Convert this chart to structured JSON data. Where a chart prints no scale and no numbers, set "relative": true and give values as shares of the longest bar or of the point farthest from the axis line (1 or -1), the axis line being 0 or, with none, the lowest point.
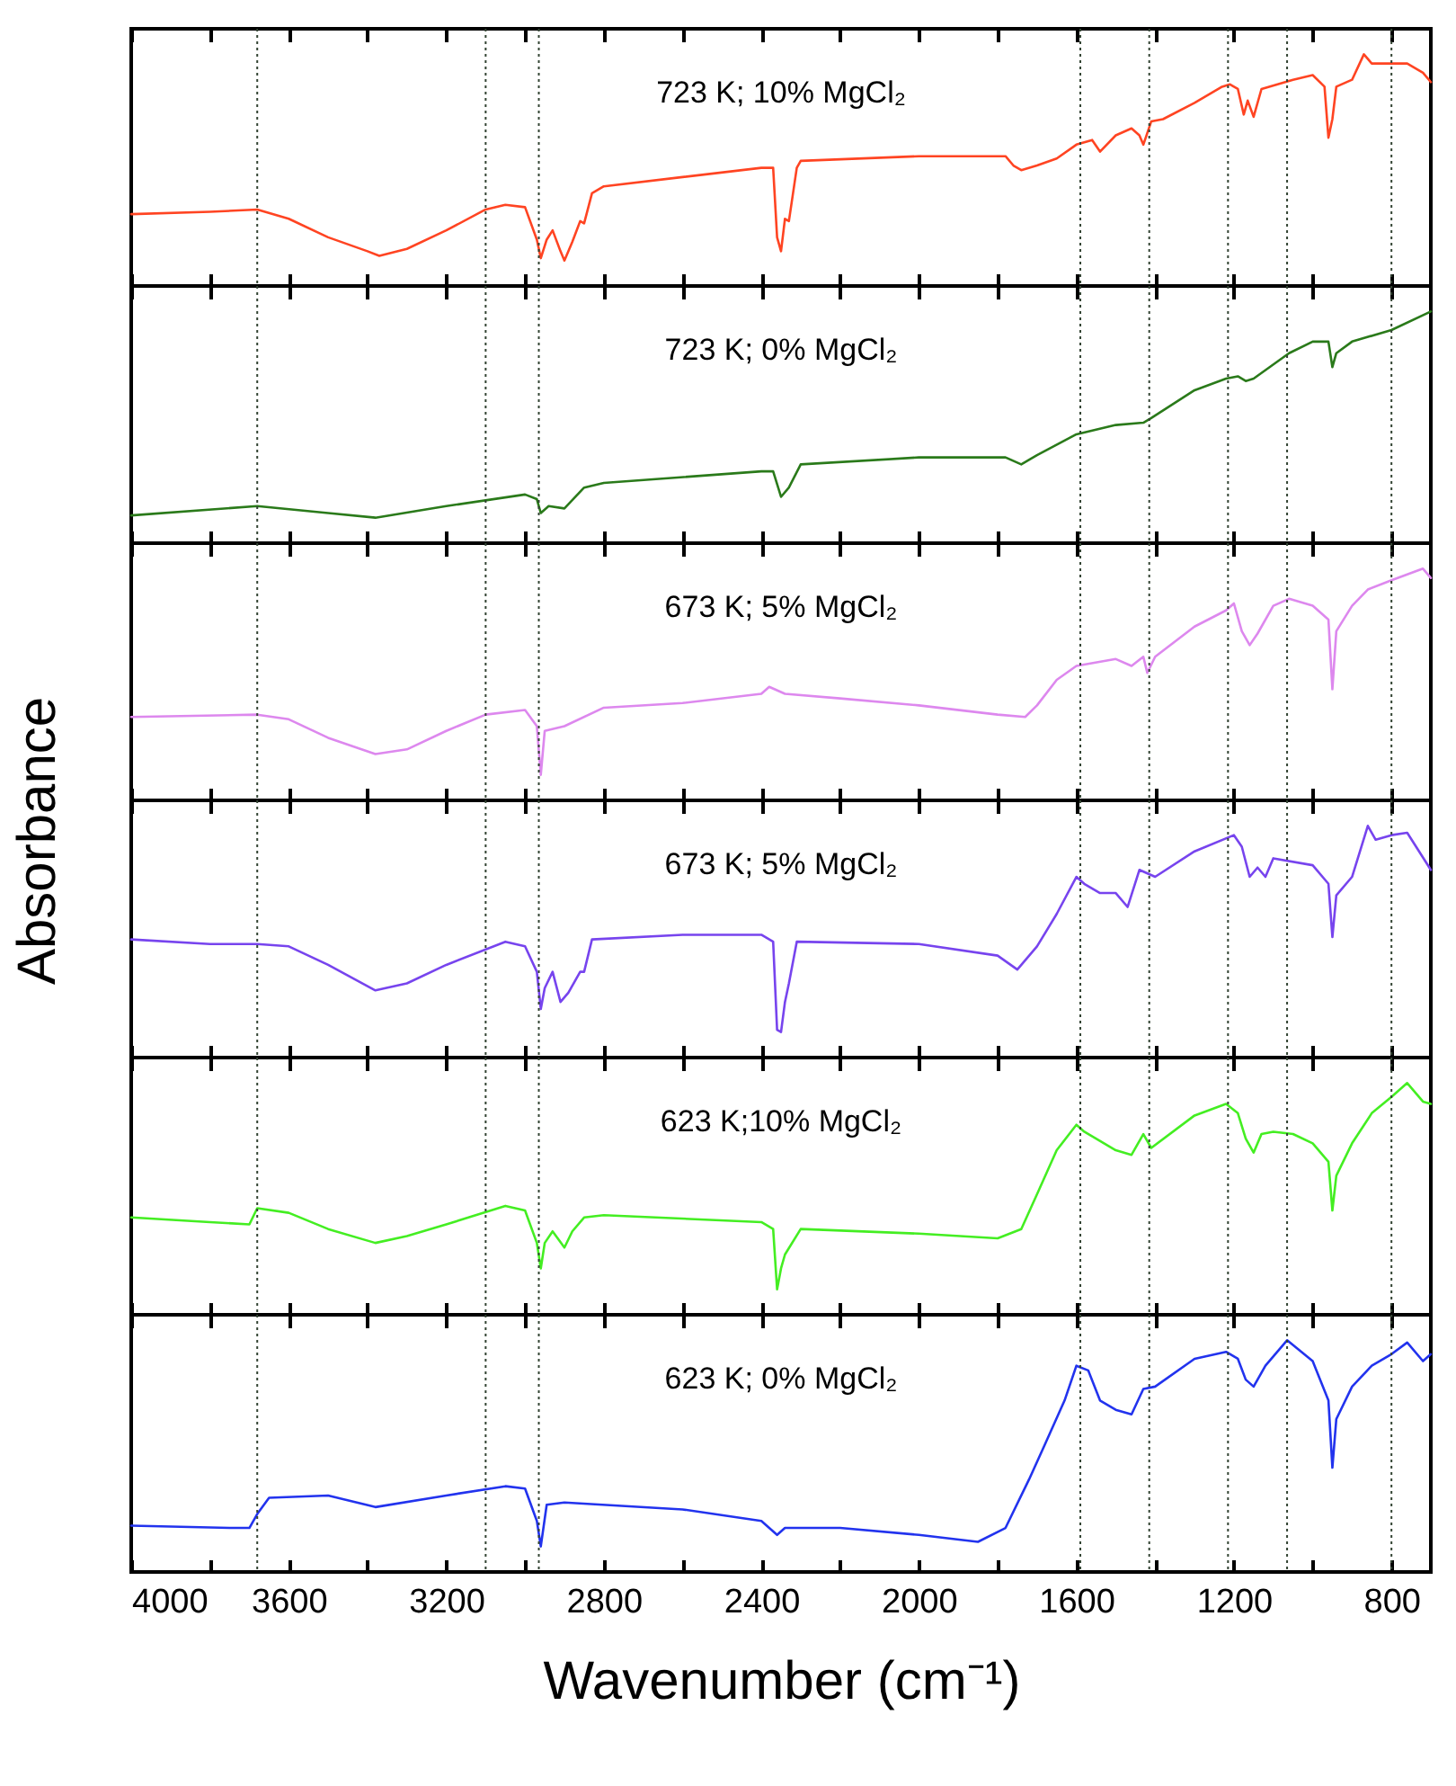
{
  "chart_data": [
    {
      "type": "line",
      "title": "723 K; 10% MgCl₂",
      "relative": true,
      "tick_labels": false,
      "xlim": [
        4000,
        700
      ],
      "xticks": [
        4000,
        {
          "value": 3800,
          "label": null
        },
        3600,
        {
          "value": 3400,
          "label": null
        },
        3200,
        {
          "value": 3000,
          "label": null
        },
        2800,
        {
          "value": 2600,
          "label": null
        },
        2400,
        {
          "value": 2200,
          "label": null
        },
        2000,
        {
          "value": 1800,
          "label": null
        },
        1600,
        {
          "value": 1400,
          "label": null
        },
        1200,
        {
          "value": 1000,
          "label": null
        },
        800
      ],
      "ref_lines": [
        {
          "axis": "x",
          "value": 3680
        },
        {
          "axis": "x",
          "value": 3100
        },
        {
          "axis": "x",
          "value": 2965
        },
        {
          "axis": "x",
          "value": 1590
        },
        {
          "axis": "x",
          "value": 1415
        },
        {
          "axis": "x",
          "value": 1215
        },
        {
          "axis": "x",
          "value": 1065
        },
        {
          "axis": "x",
          "value": 800
        }
      ],
      "x": [
        4000,
        3800,
        3680,
        3600,
        3500,
        3400,
        3370,
        3300,
        3200,
        3100,
        3050,
        3000,
        2970,
        2960,
        2945,
        2930,
        2910,
        2900,
        2880,
        2860,
        2850,
        2830,
        2800,
        2600,
        2400,
        2370,
        2360,
        2350,
        2340,
        2330,
        2310,
        2300,
        2000,
        1780,
        1760,
        1740,
        1700,
        1650,
        1600,
        1560,
        1540,
        1500,
        1460,
        1440,
        1430,
        1410,
        1380,
        1300,
        1230,
        1210,
        1190,
        1175,
        1165,
        1150,
        1130,
        1050,
        1000,
        970,
        960,
        950,
        940,
        900,
        870,
        850,
        820,
        800,
        760,
        720,
        700
      ],
      "series": [
        {
          "color": "#ff4422",
          "values": [
            0.31,
            0.32,
            0.33,
            0.29,
            0.21,
            0.15,
            0.13,
            0.16,
            0.24,
            0.33,
            0.35,
            0.34,
            0.2,
            0.12,
            0.2,
            0.24,
            0.15,
            0.11,
            0.19,
            0.28,
            0.27,
            0.4,
            0.43,
            0.47,
            0.51,
            0.51,
            0.21,
            0.15,
            0.29,
            0.28,
            0.51,
            0.54,
            0.56,
            0.56,
            0.52,
            0.5,
            0.52,
            0.55,
            0.61,
            0.63,
            0.58,
            0.65,
            0.68,
            0.65,
            0.61,
            0.71,
            0.72,
            0.79,
            0.86,
            0.87,
            0.85,
            0.74,
            0.8,
            0.73,
            0.85,
            0.89,
            0.91,
            0.86,
            0.64,
            0.72,
            0.86,
            0.89,
            1.0,
            0.96,
            0.96,
            0.96,
            0.96,
            0.92,
            0.88
          ]
        }
      ]
    },
    {
      "type": "line",
      "title": "723 K;  0% MgCl₂",
      "relative": true,
      "tick_labels": false,
      "xlim": [
        4000,
        700
      ],
      "xticks": [
        4000,
        {
          "value": 3800,
          "label": null
        },
        3600,
        {
          "value": 3400,
          "label": null
        },
        3200,
        {
          "value": 3000,
          "label": null
        },
        2800,
        {
          "value": 2600,
          "label": null
        },
        2400,
        {
          "value": 2200,
          "label": null
        },
        2000,
        {
          "value": 1800,
          "label": null
        },
        1600,
        {
          "value": 1400,
          "label": null
        },
        1200,
        {
          "value": 1000,
          "label": null
        },
        800
      ],
      "ref_lines": [
        {
          "axis": "x",
          "value": 3680
        },
        {
          "axis": "x",
          "value": 3100
        },
        {
          "axis": "x",
          "value": 2965
        },
        {
          "axis": "x",
          "value": 1590
        },
        {
          "axis": "x",
          "value": 1415
        },
        {
          "axis": "x",
          "value": 1215
        },
        {
          "axis": "x",
          "value": 1065
        },
        {
          "axis": "x",
          "value": 800
        }
      ],
      "x": [
        4000,
        3680,
        3500,
        3380,
        3200,
        3000,
        2970,
        2960,
        2940,
        2900,
        2850,
        2800,
        2400,
        2370,
        2350,
        2330,
        2300,
        2000,
        1780,
        1740,
        1700,
        1600,
        1500,
        1430,
        1410,
        1300,
        1220,
        1190,
        1170,
        1150,
        1060,
        1000,
        960,
        950,
        940,
        900,
        800,
        700
      ],
      "series": [
        {
          "color": "#2a7a1a",
          "values": [
            0.12,
            0.16,
            0.13,
            0.11,
            0.16,
            0.21,
            0.19,
            0.13,
            0.16,
            0.15,
            0.24,
            0.26,
            0.31,
            0.31,
            0.2,
            0.24,
            0.34,
            0.37,
            0.37,
            0.34,
            0.38,
            0.47,
            0.51,
            0.52,
            0.54,
            0.66,
            0.71,
            0.72,
            0.7,
            0.71,
            0.82,
            0.87,
            0.87,
            0.76,
            0.82,
            0.87,
            0.92,
            1.0
          ]
        }
      ]
    },
    {
      "type": "line",
      "title": "673 K;  5% MgCl₂",
      "relative": true,
      "tick_labels": false,
      "ylabel": "Absorbance",
      "xlim": [
        4000,
        700
      ],
      "xticks": [
        4000,
        {
          "value": 3800,
          "label": null
        },
        3600,
        {
          "value": 3400,
          "label": null
        },
        3200,
        {
          "value": 3000,
          "label": null
        },
        2800,
        {
          "value": 2600,
          "label": null
        },
        2400,
        {
          "value": 2200,
          "label": null
        },
        2000,
        {
          "value": 1800,
          "label": null
        },
        1600,
        {
          "value": 1400,
          "label": null
        },
        1200,
        {
          "value": 1000,
          "label": null
        },
        800
      ],
      "ref_lines": [
        {
          "axis": "x",
          "value": 3680
        },
        {
          "axis": "x",
          "value": 3100
        },
        {
          "axis": "x",
          "value": 2965
        },
        {
          "axis": "x",
          "value": 1590
        },
        {
          "axis": "x",
          "value": 1415
        },
        {
          "axis": "x",
          "value": 1215
        },
        {
          "axis": "x",
          "value": 1065
        },
        {
          "axis": "x",
          "value": 800
        }
      ],
      "x": [
        4000,
        3680,
        3600,
        3500,
        3380,
        3300,
        3200,
        3100,
        3000,
        2970,
        2960,
        2950,
        2900,
        2800,
        2600,
        2400,
        2380,
        2340,
        2200,
        2000,
        1800,
        1730,
        1700,
        1650,
        1600,
        1500,
        1460,
        1430,
        1420,
        1400,
        1300,
        1220,
        1200,
        1180,
        1160,
        1140,
        1100,
        1060,
        1000,
        960,
        950,
        940,
        900,
        860,
        800,
        720,
        700
      ],
      "series": [
        {
          "color": "#dd88ee",
          "values": [
            0.36,
            0.37,
            0.35,
            0.27,
            0.2,
            0.22,
            0.3,
            0.37,
            0.39,
            0.32,
            0.11,
            0.3,
            0.32,
            0.4,
            0.42,
            0.46,
            0.49,
            0.46,
            0.44,
            0.41,
            0.37,
            0.36,
            0.41,
            0.52,
            0.58,
            0.61,
            0.58,
            0.62,
            0.55,
            0.62,
            0.75,
            0.82,
            0.85,
            0.73,
            0.67,
            0.72,
            0.84,
            0.87,
            0.84,
            0.78,
            0.48,
            0.73,
            0.84,
            0.91,
            0.95,
            1.0,
            0.96
          ]
        }
      ]
    },
    {
      "type": "line",
      "title": "673 K;  5% MgCl₂",
      "relative": true,
      "tick_labels": false,
      "xlim": [
        4000,
        700
      ],
      "xticks": [
        4000,
        {
          "value": 3800,
          "label": null
        },
        3600,
        {
          "value": 3400,
          "label": null
        },
        3200,
        {
          "value": 3000,
          "label": null
        },
        2800,
        {
          "value": 2600,
          "label": null
        },
        2400,
        {
          "value": 2200,
          "label": null
        },
        2000,
        {
          "value": 1800,
          "label": null
        },
        1600,
        {
          "value": 1400,
          "label": null
        },
        1200,
        {
          "value": 1000,
          "label": null
        },
        800
      ],
      "ref_lines": [
        {
          "axis": "x",
          "value": 3680
        },
        {
          "axis": "x",
          "value": 3100
        },
        {
          "axis": "x",
          "value": 2965
        },
        {
          "axis": "x",
          "value": 1590
        },
        {
          "axis": "x",
          "value": 1415
        },
        {
          "axis": "x",
          "value": 1215
        },
        {
          "axis": "x",
          "value": 1065
        },
        {
          "axis": "x",
          "value": 800
        }
      ],
      "x": [
        4000,
        3800,
        3680,
        3600,
        3500,
        3380,
        3300,
        3200,
        3050,
        3000,
        2970,
        2960,
        2950,
        2930,
        2910,
        2890,
        2860,
        2850,
        2830,
        2600,
        2400,
        2370,
        2360,
        2350,
        2340,
        2330,
        2310,
        2000,
        1800,
        1750,
        1700,
        1650,
        1600,
        1580,
        1540,
        1500,
        1470,
        1440,
        1400,
        1300,
        1200,
        1180,
        1160,
        1140,
        1120,
        1100,
        1000,
        960,
        950,
        940,
        900,
        860,
        840,
        800,
        760,
        700
      ],
      "series": [
        {
          "color": "#7744ee",
          "values": [
            0.51,
            0.49,
            0.49,
            0.48,
            0.4,
            0.29,
            0.32,
            0.4,
            0.5,
            0.48,
            0.37,
            0.21,
            0.3,
            0.37,
            0.24,
            0.28,
            0.37,
            0.37,
            0.51,
            0.53,
            0.53,
            0.5,
            0.12,
            0.11,
            0.24,
            0.32,
            0.5,
            0.49,
            0.44,
            0.38,
            0.48,
            0.62,
            0.78,
            0.75,
            0.71,
            0.71,
            0.65,
            0.81,
            0.78,
            0.89,
            0.96,
            0.91,
            0.78,
            0.82,
            0.78,
            0.86,
            0.83,
            0.75,
            0.52,
            0.7,
            0.78,
            1.0,
            0.94,
            0.96,
            0.97,
            0.81
          ]
        }
      ]
    },
    {
      "type": "line",
      "title": "623 K;10% MgCl₂",
      "relative": true,
      "tick_labels": false,
      "xlim": [
        4000,
        700
      ],
      "xticks": [
        4000,
        {
          "value": 3800,
          "label": null
        },
        3600,
        {
          "value": 3400,
          "label": null
        },
        3200,
        {
          "value": 3000,
          "label": null
        },
        2800,
        {
          "value": 2600,
          "label": null
        },
        2400,
        {
          "value": 2200,
          "label": null
        },
        2000,
        {
          "value": 1800,
          "label": null
        },
        1600,
        {
          "value": 1400,
          "label": null
        },
        1200,
        {
          "value": 1000,
          "label": null
        },
        800
      ],
      "ref_lines": [
        {
          "axis": "x",
          "value": 3680
        },
        {
          "axis": "x",
          "value": 3100
        },
        {
          "axis": "x",
          "value": 2965
        },
        {
          "axis": "x",
          "value": 1590
        },
        {
          "axis": "x",
          "value": 1415
        },
        {
          "axis": "x",
          "value": 1215
        },
        {
          "axis": "x",
          "value": 1065
        },
        {
          "axis": "x",
          "value": 800
        }
      ],
      "x": [
        4000,
        3800,
        3700,
        3680,
        3600,
        3500,
        3380,
        3300,
        3200,
        3050,
        3000,
        2970,
        2960,
        2950,
        2930,
        2900,
        2880,
        2850,
        2800,
        2400,
        2370,
        2360,
        2350,
        2340,
        2300,
        2000,
        1800,
        1740,
        1700,
        1650,
        1600,
        1580,
        1500,
        1460,
        1430,
        1410,
        1300,
        1220,
        1190,
        1170,
        1150,
        1130,
        1100,
        1050,
        1000,
        960,
        950,
        940,
        900,
        850,
        800,
        760,
        720,
        700
      ],
      "series": [
        {
          "color": "#44ee22",
          "values": [
            0.42,
            0.4,
            0.39,
            0.46,
            0.44,
            0.37,
            0.31,
            0.34,
            0.39,
            0.47,
            0.45,
            0.31,
            0.2,
            0.31,
            0.36,
            0.29,
            0.36,
            0.42,
            0.43,
            0.4,
            0.37,
            0.11,
            0.2,
            0.26,
            0.37,
            0.35,
            0.33,
            0.37,
            0.52,
            0.71,
            0.82,
            0.79,
            0.71,
            0.69,
            0.78,
            0.72,
            0.86,
            0.91,
            0.87,
            0.76,
            0.7,
            0.78,
            0.79,
            0.78,
            0.74,
            0.66,
            0.45,
            0.6,
            0.74,
            0.87,
            0.94,
            1.0,
            0.92,
            0.91
          ]
        }
      ]
    },
    {
      "type": "line",
      "title": "623 K; 0% MgCl₂",
      "relative": true,
      "tick_labels": "x",
      "xlabel": "Wavenumber (cm⁻¹)",
      "xlim": [
        4000,
        700
      ],
      "xticks": [
        4000,
        {
          "value": 3800,
          "label": null
        },
        3600,
        {
          "value": 3400,
          "label": null
        },
        3200,
        {
          "value": 3000,
          "label": null
        },
        2800,
        {
          "value": 2600,
          "label": null
        },
        2400,
        {
          "value": 2200,
          "label": null
        },
        2000,
        {
          "value": 1800,
          "label": null
        },
        1600,
        {
          "value": 1400,
          "label": null
        },
        1200,
        {
          "value": 1000,
          "label": null
        },
        800
      ],
      "ref_lines": [
        {
          "axis": "x",
          "value": 3680
        },
        {
          "axis": "x",
          "value": 3100
        },
        {
          "axis": "x",
          "value": 2965
        },
        {
          "axis": "x",
          "value": 1590
        },
        {
          "axis": "x",
          "value": 1415
        },
        {
          "axis": "x",
          "value": 1215
        },
        {
          "axis": "x",
          "value": 1065
        },
        {
          "axis": "x",
          "value": 800
        }
      ],
      "x": [
        4000,
        3750,
        3700,
        3680,
        3650,
        3500,
        3380,
        3200,
        3050,
        3000,
        2970,
        2960,
        2945,
        2900,
        2600,
        2400,
        2360,
        2340,
        2200,
        2000,
        1850,
        1780,
        1720,
        1680,
        1630,
        1600,
        1570,
        1540,
        1500,
        1460,
        1430,
        1400,
        1300,
        1220,
        1190,
        1170,
        1150,
        1120,
        1065,
        1000,
        960,
        950,
        940,
        900,
        850,
        800,
        760,
        720,
        700
      ],
      "series": [
        {
          "color": "#2233ee",
          "values": [
            0.2,
            0.19,
            0.19,
            0.25,
            0.32,
            0.33,
            0.28,
            0.33,
            0.37,
            0.36,
            0.22,
            0.11,
            0.29,
            0.3,
            0.27,
            0.22,
            0.16,
            0.19,
            0.19,
            0.16,
            0.13,
            0.19,
            0.4,
            0.55,
            0.74,
            0.89,
            0.87,
            0.74,
            0.7,
            0.68,
            0.79,
            0.8,
            0.92,
            0.95,
            0.92,
            0.83,
            0.8,
            0.89,
            1.0,
            0.91,
            0.74,
            0.45,
            0.66,
            0.8,
            0.89,
            0.94,
            0.99,
            0.91,
            0.94
          ]
        }
      ]
    }
  ]
}
